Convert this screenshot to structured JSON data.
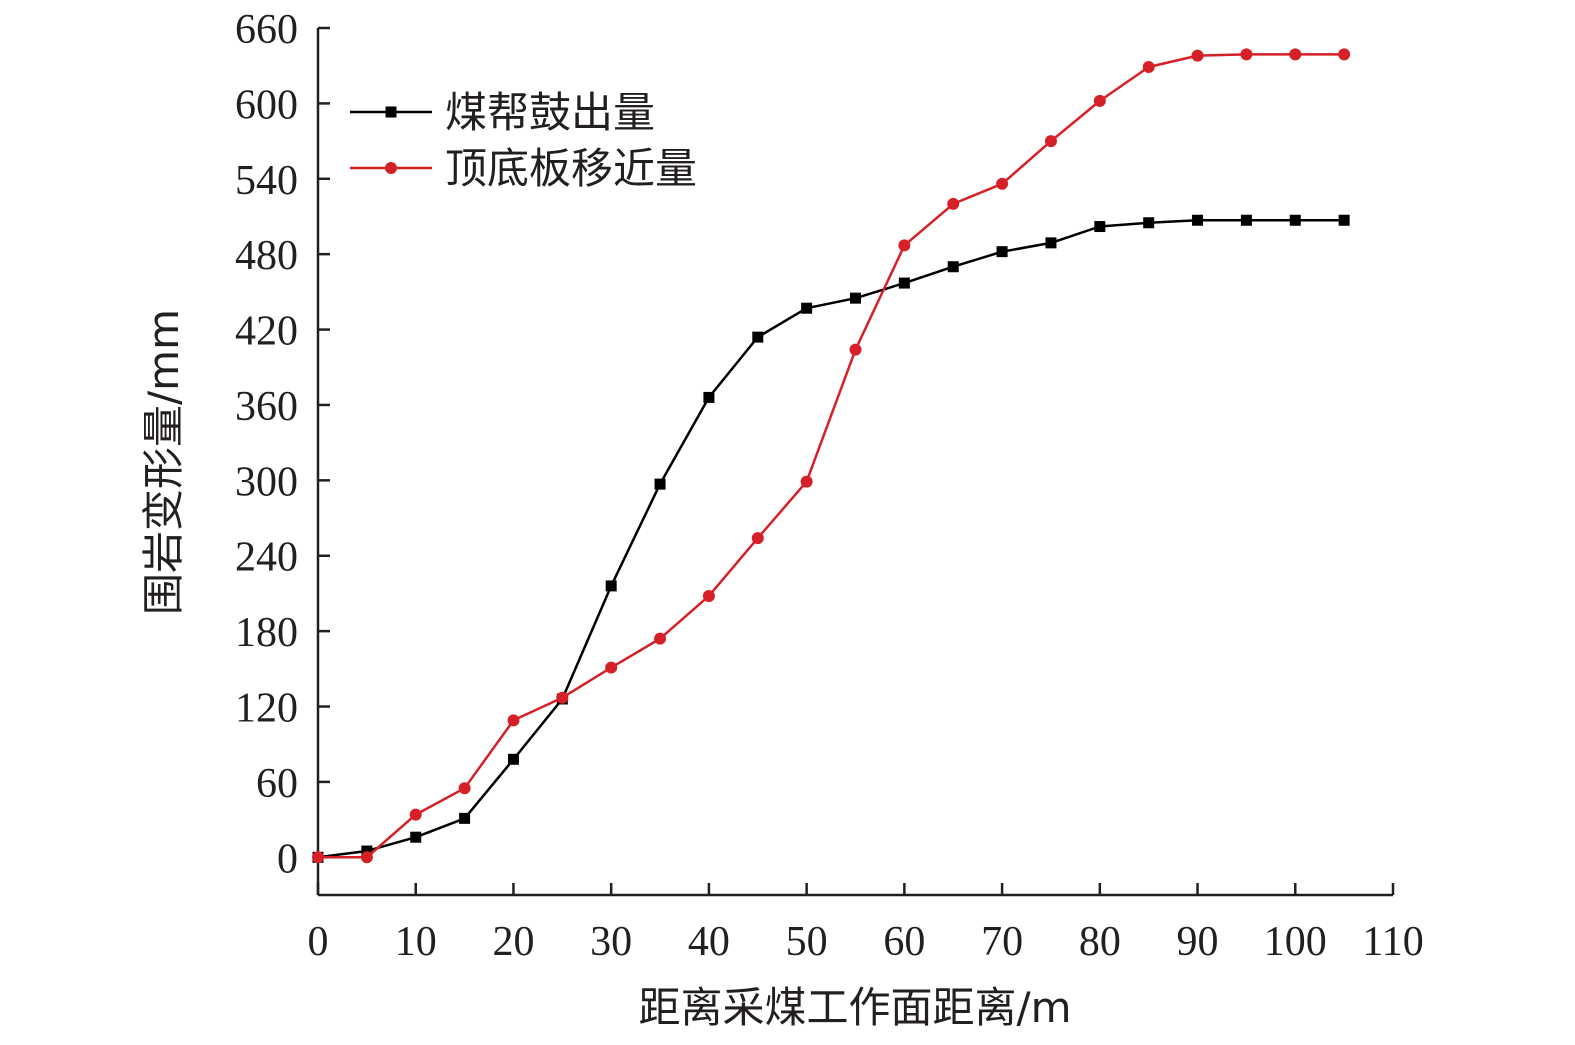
{
  "chart_data": {
    "type": "line",
    "title": "",
    "xlabel": "距离采煤工作面距离/m",
    "ylabel": "围岩变形量/mm",
    "xlim": [
      0,
      110
    ],
    "ylim": [
      -30,
      660
    ],
    "x_ticks": [
      0,
      10,
      20,
      30,
      40,
      50,
      60,
      70,
      80,
      90,
      100,
      110
    ],
    "y_ticks": [
      0,
      60,
      120,
      180,
      240,
      300,
      360,
      420,
      480,
      540,
      600,
      660
    ],
    "grid": false,
    "legend_position": "top-left",
    "x": [
      0,
      5,
      10,
      15,
      20,
      25,
      30,
      35,
      40,
      45,
      50,
      55,
      60,
      65,
      70,
      75,
      80,
      85,
      90,
      95,
      100,
      105
    ],
    "series": [
      {
        "name": "煤帮鼓出量",
        "color": "#000000",
        "marker": "square",
        "values": [
          0,
          5,
          16,
          31,
          78,
          126,
          216,
          297,
          366,
          414,
          437,
          445,
          457,
          470,
          482,
          489,
          502,
          505,
          507,
          507,
          507,
          507
        ]
      },
      {
        "name": "顶底板移近量",
        "color": "#d62027",
        "marker": "circle",
        "values": [
          0,
          0,
          34,
          55,
          109,
          127,
          151,
          174,
          208,
          254,
          299,
          404,
          487,
          520,
          536,
          570,
          602,
          629,
          638,
          639,
          639,
          639
        ]
      }
    ]
  }
}
